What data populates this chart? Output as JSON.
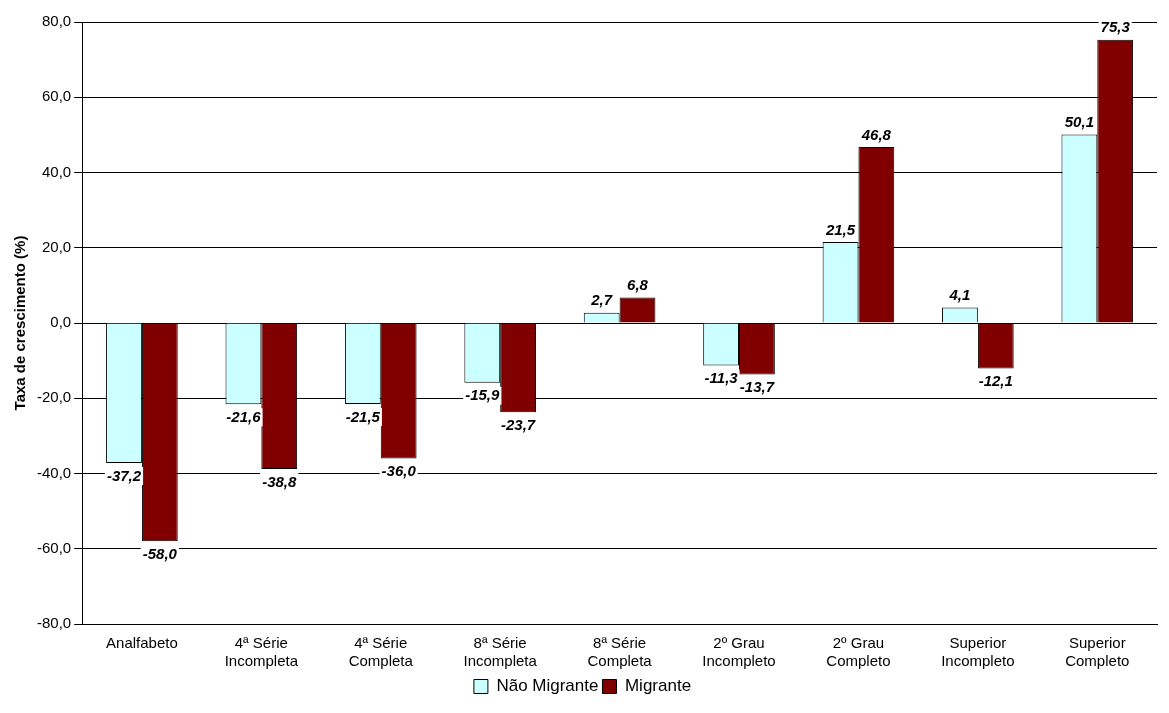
{
  "chart_data": {
    "type": "bar",
    "ylabel": "Taxa de crescimento (%)",
    "categories": [
      "Analfabeto",
      "4ª Série Incompleta",
      "4ª Série Completa",
      "8ª Série Incompleta",
      "8ª Série Completa",
      "2º Grau Incompleto",
      "2º Grau Completo",
      "Superior Incompleto",
      "Superior Completo"
    ],
    "series": [
      {
        "name": "Não Migrante",
        "color": "#ccffff",
        "values": [
          -37.2,
          -21.6,
          -21.5,
          -15.9,
          2.7,
          -11.3,
          21.5,
          4.1,
          50.1
        ],
        "value_labels": [
          "-37,2",
          "-21,6",
          "-21,5",
          "-15,9",
          "2,7",
          "-11,3",
          "21,5",
          "4,1",
          "50,1"
        ]
      },
      {
        "name": "Migrante",
        "color": "#800000",
        "values": [
          -58.0,
          -38.8,
          -36.0,
          -23.7,
          6.8,
          -13.7,
          46.8,
          -12.1,
          75.3
        ],
        "value_labels": [
          "-58,0",
          "-38,8",
          "-36,0",
          "-23,7",
          "6,8",
          "-13,7",
          "46,8",
          "-12,1",
          "75,3"
        ]
      }
    ],
    "ylim": [
      -80,
      80
    ],
    "yticks": [
      {
        "value": -80,
        "label": "-80,0"
      },
      {
        "value": -60,
        "label": "-60,0"
      },
      {
        "value": -40,
        "label": "-40,0"
      },
      {
        "value": -20,
        "label": "-20,0"
      },
      {
        "value": 0,
        "label": "0,0"
      },
      {
        "value": 20,
        "label": "20,0"
      },
      {
        "value": 40,
        "label": "40,0"
      },
      {
        "value": 60,
        "label": "60,0"
      },
      {
        "value": 80,
        "label": "80,0"
      }
    ],
    "grid": "y",
    "legend": "bottom"
  }
}
